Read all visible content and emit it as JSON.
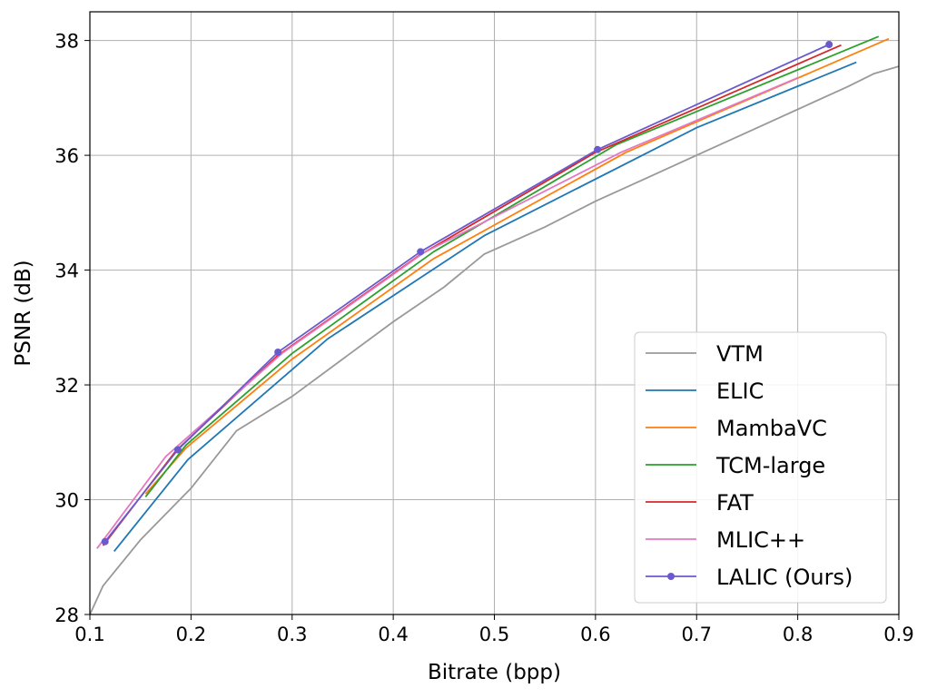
{
  "chart_data": {
    "type": "line",
    "xlabel": "Bitrate (bpp)",
    "ylabel": "PSNR (dB)",
    "xlim": [
      0.1,
      0.9
    ],
    "ylim": [
      28,
      38.5
    ],
    "xticks": [
      "0.1",
      "0.2",
      "0.3",
      "0.4",
      "0.5",
      "0.6",
      "0.7",
      "0.8",
      "0.9"
    ],
    "yticks": [
      "28",
      "30",
      "32",
      "34",
      "36",
      "38"
    ],
    "grid": true,
    "legend_position": "lower-right",
    "series": [
      {
        "name": "VTM",
        "color": "#999999",
        "marker": false,
        "x": [
          0.1,
          0.113,
          0.15,
          0.2,
          0.245,
          0.3,
          0.35,
          0.4,
          0.45,
          0.49,
          0.55,
          0.6,
          0.65,
          0.7,
          0.75,
          0.8,
          0.85,
          0.875,
          0.9
        ],
        "y": [
          28.0,
          28.5,
          29.3,
          30.2,
          31.2,
          31.8,
          32.45,
          33.1,
          33.7,
          34.28,
          34.75,
          35.2,
          35.6,
          36.0,
          36.4,
          36.8,
          37.2,
          37.42,
          37.55
        ]
      },
      {
        "name": "ELIC",
        "color": "#1f77b4",
        "marker": false,
        "x": [
          0.124,
          0.197,
          0.335,
          0.49,
          0.7,
          0.858
        ],
        "y": [
          29.1,
          30.7,
          32.8,
          34.6,
          36.48,
          37.62
        ]
      },
      {
        "name": "MambaVC",
        "color": "#ff7f0e",
        "marker": false,
        "x": [
          0.155,
          0.195,
          0.3,
          0.44,
          0.63,
          0.89
        ],
        "y": [
          30.1,
          30.9,
          32.45,
          34.2,
          36.05,
          38.03
        ]
      },
      {
        "name": "TCM-large",
        "color": "#2ca02c",
        "marker": false,
        "x": [
          0.155,
          0.195,
          0.3,
          0.44,
          0.62,
          0.88
        ],
        "y": [
          30.05,
          30.95,
          32.55,
          34.32,
          36.18,
          38.07
        ]
      },
      {
        "name": "FAT",
        "color": "#d62728",
        "marker": false,
        "x": [
          0.113,
          0.185,
          0.285,
          0.425,
          0.6,
          0.843
        ],
        "y": [
          29.2,
          30.85,
          32.5,
          34.25,
          36.05,
          37.92
        ]
      },
      {
        "name": "MLIC++",
        "color": "#e377c2",
        "marker": false,
        "x": [
          0.107,
          0.175,
          0.29,
          0.43,
          0.625,
          0.8
        ],
        "y": [
          29.15,
          30.75,
          32.55,
          34.3,
          36.05,
          37.35
        ]
      },
      {
        "name": "LALIC (Ours)",
        "color": "#6a5acd",
        "marker": true,
        "x": [
          0.115,
          0.187,
          0.286,
          0.427,
          0.602,
          0.831
        ],
        "y": [
          29.27,
          30.87,
          32.57,
          34.32,
          36.1,
          37.93
        ]
      }
    ]
  }
}
